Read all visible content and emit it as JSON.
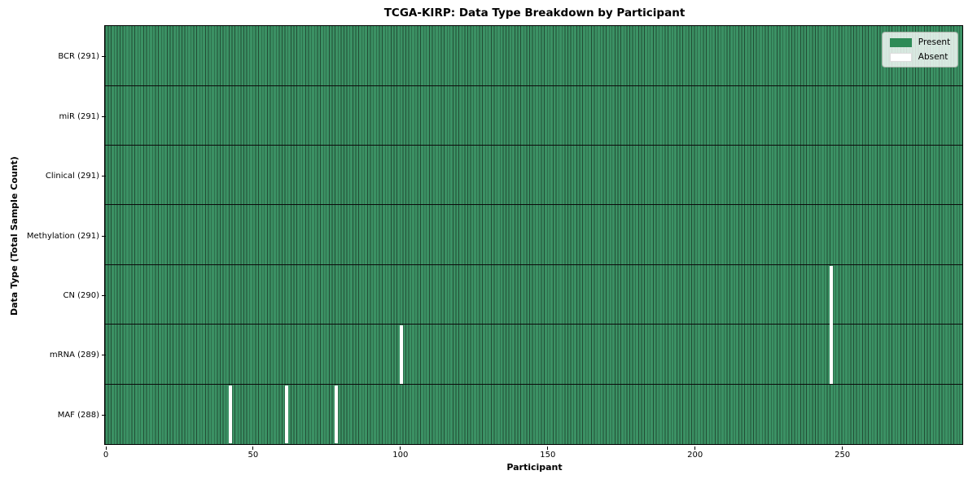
{
  "chart_data": {
    "type": "heatmap",
    "title": "TCGA-KIRP: Data Type Breakdown by Participant",
    "xlabel": "Participant",
    "ylabel": "Data Type (Total Sample Count)",
    "n_participants": 291,
    "x_range": [
      0,
      291
    ],
    "x_ticks": [
      0,
      50,
      100,
      150,
      200,
      250
    ],
    "grid": false,
    "legend": {
      "position": "upper right",
      "entries": [
        {
          "label": "Present",
          "color": "#2e8b57"
        },
        {
          "label": "Absent",
          "color": "#ffffff"
        }
      ]
    },
    "rows": [
      {
        "name": "BCR",
        "label": "BCR (291)",
        "present_count": 291,
        "absent_participants": []
      },
      {
        "name": "miR",
        "label": "miR (291)",
        "present_count": 291,
        "absent_participants": []
      },
      {
        "name": "Clinical",
        "label": "Clinical (291)",
        "present_count": 291,
        "absent_participants": []
      },
      {
        "name": "Methylation",
        "label": "Methylation (291)",
        "present_count": 291,
        "absent_participants": []
      },
      {
        "name": "CN",
        "label": "CN (290)",
        "present_count": 290,
        "absent_participants": [
          246
        ]
      },
      {
        "name": "mRNA",
        "label": "mRNA (289)",
        "present_count": 289,
        "absent_participants": [
          100,
          246
        ]
      },
      {
        "name": "MAF",
        "label": "MAF (288)",
        "present_count": 288,
        "absent_participants": [
          42,
          61,
          78
        ]
      }
    ],
    "colors": {
      "present": "#2e8b57",
      "present_fill": "#3b9164",
      "bar_edge": "#224d35",
      "row_divider": "#0b0b0b",
      "absent": "#ffffff"
    }
  }
}
